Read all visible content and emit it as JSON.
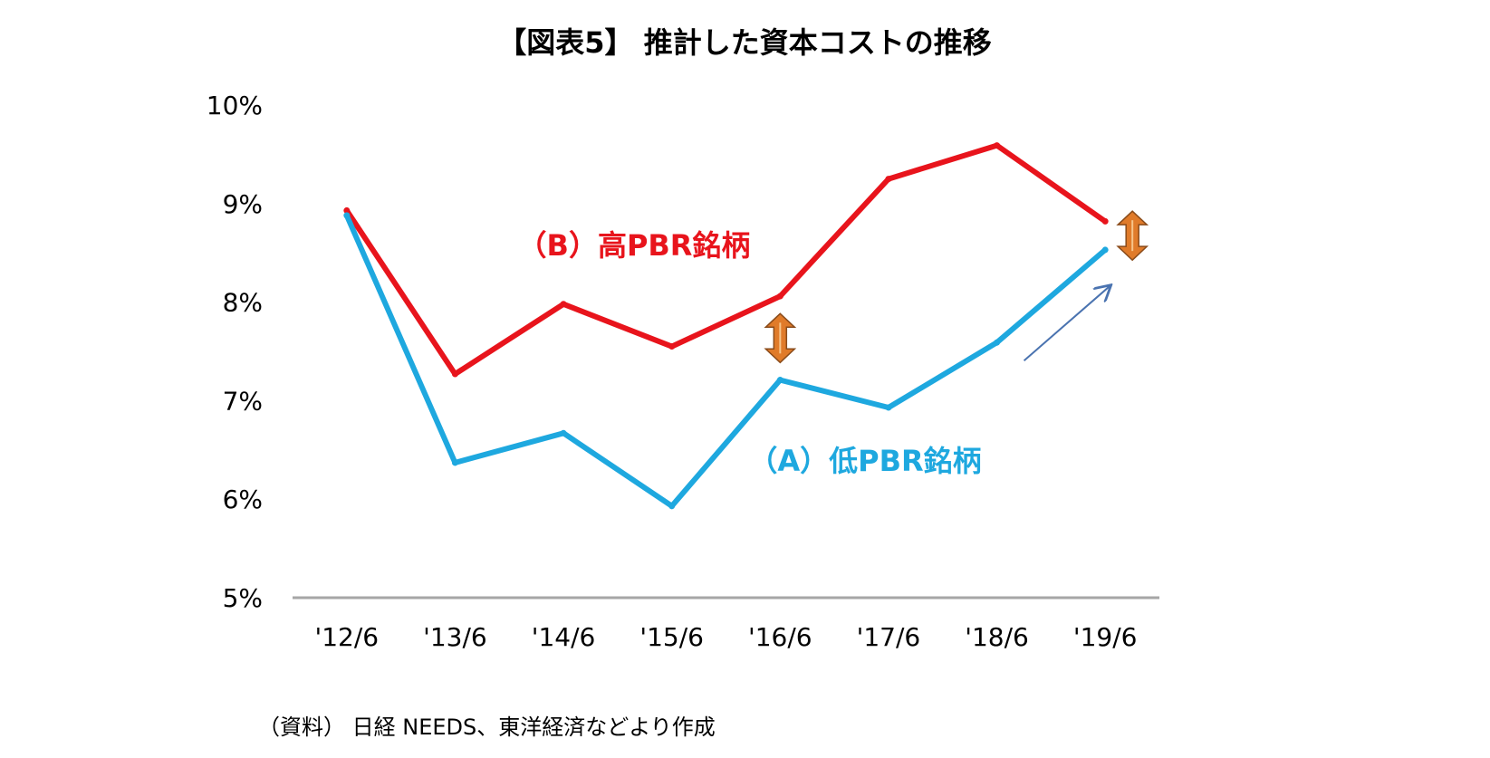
{
  "title": "【図表5】 推計した資本コストの推移",
  "source": "（資料） 日経 NEEDS、東洋経済などより作成",
  "chart_data": {
    "type": "line",
    "title": "【図表5】 推計した資本コストの推移",
    "categories": [
      "'12/6",
      "'13/6",
      "'14/6",
      "'15/6",
      "'16/6",
      "'17/6",
      "'18/6",
      "'19/6"
    ],
    "ylim": [
      5,
      10
    ],
    "yticks": [
      "5%",
      "6%",
      "7%",
      "8%",
      "9%",
      "10%"
    ],
    "ytick_values": [
      5,
      6,
      7,
      8,
      9,
      10
    ],
    "grid": false,
    "series": [
      {
        "name": "（B）高PBR銘柄",
        "color": "#e8141c",
        "values": [
          8.93,
          7.27,
          7.98,
          7.55,
          8.06,
          9.25,
          9.59,
          8.82
        ]
      },
      {
        "name": "（A）低PBR銘柄",
        "color": "#1ea8df",
        "values": [
          8.88,
          6.37,
          6.67,
          5.93,
          7.21,
          6.93,
          7.59,
          8.53
        ]
      }
    ],
    "annotations": [
      {
        "type": "double-arrow",
        "x": "'16/6",
        "color": "#e07b2a"
      },
      {
        "type": "double-arrow",
        "x": "'19/6",
        "color": "#e07b2a"
      },
      {
        "type": "arrow",
        "from": "'18/6",
        "to": "'19/6",
        "color": "#4a73b0"
      }
    ]
  }
}
